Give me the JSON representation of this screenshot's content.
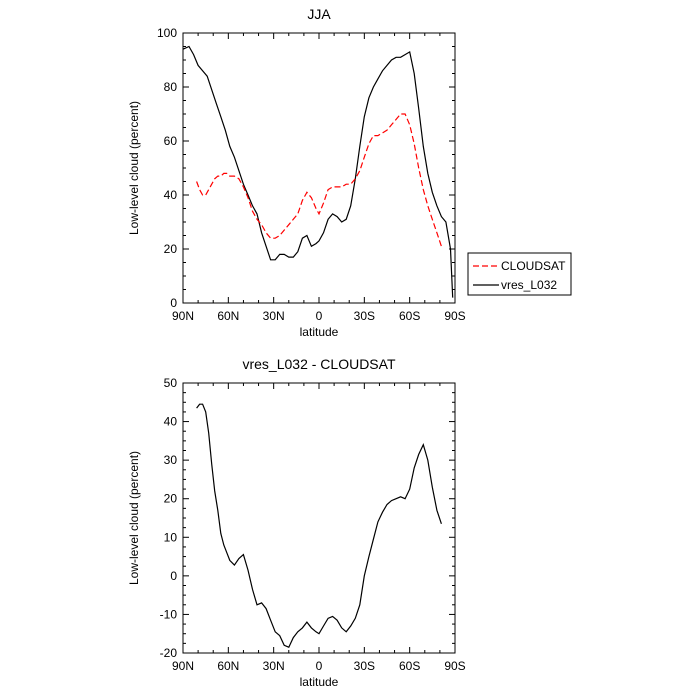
{
  "chart_data": [
    {
      "type": "line",
      "title": "JJA",
      "xlabel": "latitude",
      "ylabel": "Low-level cloud (percent)",
      "xlim": [
        90,
        -90
      ],
      "ylim": [
        0,
        100
      ],
      "xticks": [
        90,
        60,
        30,
        0,
        -30,
        -60,
        -90
      ],
      "xtick_labels": [
        "90N",
        "60N",
        "30N",
        "0",
        "30S",
        "60S",
        "90S"
      ],
      "yticks": [
        0,
        20,
        40,
        60,
        80,
        100
      ],
      "ytick_labels": [
        "0",
        "20",
        "40",
        "60",
        "80",
        "100"
      ],
      "legend": {
        "placement": "right",
        "entries": [
          "CLOUDSAT",
          "vres_L032"
        ]
      },
      "series": [
        {
          "name": "vres_L032",
          "color": "#000000",
          "dash": "solid",
          "x": [
            90,
            86,
            83,
            80,
            77,
            74,
            71,
            68,
            65,
            62,
            59,
            56,
            53,
            50,
            47,
            44,
            41,
            38,
            35,
            32,
            29,
            26,
            23,
            20,
            17,
            14,
            11,
            8,
            5,
            2,
            0,
            -3,
            -6,
            -9,
            -12,
            -15,
            -18,
            -21,
            -24,
            -27,
            -30,
            -33,
            -36,
            -39,
            -42,
            -45,
            -48,
            -51,
            -54,
            -57,
            -60,
            -63,
            -66,
            -69,
            -72,
            -75,
            -78,
            -81,
            -84,
            -87,
            -88.5
          ],
          "y": [
            94,
            95,
            92,
            88,
            86,
            84,
            79,
            74,
            69,
            64,
            58,
            54,
            49,
            44,
            40,
            36,
            33,
            26,
            21,
            16,
            16,
            18,
            18,
            17,
            17,
            19,
            24,
            25,
            21,
            22,
            23,
            26,
            31,
            33,
            32,
            30,
            31,
            36,
            46,
            58,
            69,
            76,
            80,
            83,
            86,
            88,
            90,
            91,
            91,
            92,
            93,
            85,
            72,
            58,
            48,
            41,
            36,
            32,
            30,
            20,
            2
          ]
        },
        {
          "name": "CLOUDSAT",
          "color": "#ff0000",
          "dash": "dashed",
          "x": [
            81,
            79,
            77,
            75,
            73,
            71,
            69,
            67,
            65,
            63,
            61,
            59,
            56,
            53,
            50,
            47,
            44,
            41,
            38,
            35,
            32,
            29,
            26,
            23,
            20,
            17,
            14,
            11,
            8,
            5,
            2,
            0,
            -3,
            -6,
            -9,
            -12,
            -15,
            -18,
            -21,
            -24,
            -27,
            -30,
            -33,
            -36,
            -39,
            -42,
            -45,
            -48,
            -51,
            -54,
            -57,
            -60,
            -63,
            -66,
            -69,
            -72,
            -75,
            -78,
            -81
          ],
          "y": [
            45,
            42,
            40,
            40,
            42,
            44,
            46,
            47,
            47,
            48,
            48,
            47,
            47,
            46,
            43,
            39,
            34,
            31,
            29,
            26,
            24,
            24,
            25,
            27,
            29,
            31,
            33,
            38,
            41,
            39,
            35,
            33,
            37,
            42,
            43,
            43,
            43,
            44,
            44,
            46,
            49,
            54,
            59,
            62,
            62,
            63,
            64,
            66,
            68,
            70,
            70,
            66,
            59,
            50,
            42,
            36,
            31,
            26,
            21
          ]
        }
      ]
    },
    {
      "type": "line",
      "title": "vres_L032 - CLOUDSAT",
      "xlabel": "latitude",
      "ylabel": "Low-level cloud (percent)",
      "xlim": [
        90,
        -90
      ],
      "ylim": [
        -20,
        50
      ],
      "xticks": [
        90,
        60,
        30,
        0,
        -30,
        -60,
        -90
      ],
      "xtick_labels": [
        "90N",
        "60N",
        "30N",
        "0",
        "30S",
        "60S",
        "90S"
      ],
      "yticks": [
        -20,
        -10,
        0,
        10,
        20,
        30,
        40,
        50
      ],
      "ytick_labels": [
        "-20",
        "-10",
        "0",
        "10",
        "20",
        "30",
        "40",
        "50"
      ],
      "series": [
        {
          "name": "vres_L032 - CLOUDSAT",
          "color": "#000000",
          "dash": "solid",
          "x": [
            81,
            79,
            77,
            75,
            73,
            71,
            69,
            67,
            65,
            63,
            61,
            59,
            56,
            53,
            50,
            47,
            44,
            41,
            38,
            35,
            32,
            29,
            26,
            23,
            20,
            17,
            14,
            11,
            8,
            5,
            2,
            0,
            -3,
            -6,
            -9,
            -12,
            -15,
            -18,
            -21,
            -24,
            -27,
            -30,
            -33,
            -36,
            -39,
            -42,
            -45,
            -48,
            -51,
            -54,
            -57,
            -60,
            -63,
            -66,
            -69,
            -72,
            -75,
            -78,
            -81
          ],
          "y": [
            43.5,
            44.5,
            44.5,
            42.5,
            37,
            29,
            22,
            17,
            11,
            8,
            6,
            4,
            2.8,
            4.5,
            5.5,
            1.5,
            -3.5,
            -7.5,
            -7,
            -8.5,
            -11.5,
            -14.5,
            -15.5,
            -18,
            -18.5,
            -16,
            -14.5,
            -13.5,
            -12,
            -13.5,
            -14.5,
            -15,
            -13,
            -11,
            -10.5,
            -11.5,
            -13.5,
            -14.5,
            -13,
            -11,
            -7.5,
            0,
            5,
            9.5,
            14,
            16.5,
            18.5,
            19.5,
            20,
            20.5,
            20,
            22.5,
            28,
            31.5,
            34,
            30,
            23,
            17,
            13.5
          ]
        }
      ]
    }
  ]
}
